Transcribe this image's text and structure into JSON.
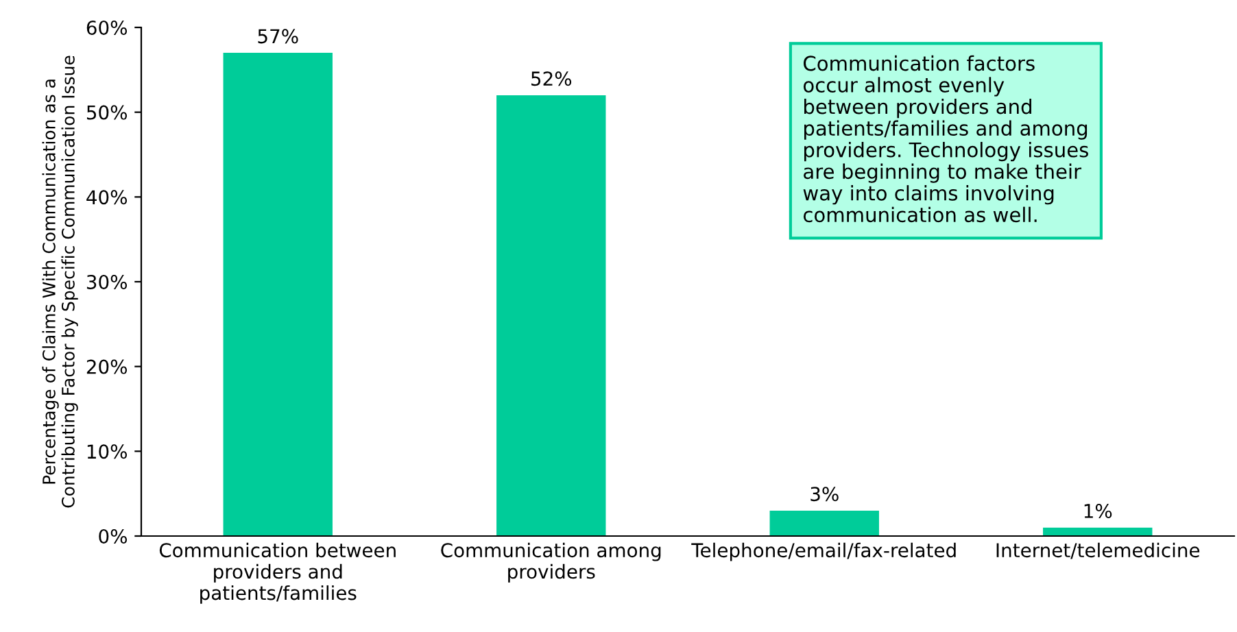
{
  "chart_data": {
    "type": "bar",
    "categories": [
      "Communication between\nproviders and\npatients/families",
      "Communication among\nproviders",
      "Telephone/email/fax-related",
      "Internet/telemedicine"
    ],
    "values": [
      57,
      52,
      3,
      1
    ],
    "color": "#00cc99",
    "ylabel": "Percentage of Claims With Communication as a\nContributing Factor by Specific Communication Issue",
    "ylim": [
      0,
      60
    ],
    "yticks": [
      {
        "value": 0,
        "label": "0%"
      },
      {
        "value": 10,
        "label": "10%"
      },
      {
        "value": 20,
        "label": "20%"
      },
      {
        "value": 30,
        "label": "30%"
      },
      {
        "value": 40,
        "label": "40%"
      },
      {
        "value": 50,
        "label": "50%"
      },
      {
        "value": 60,
        "label": "60%"
      }
    ],
    "value_labels": [
      "57%",
      "52%",
      "3%",
      "1%"
    ],
    "annotations": [
      "Communication factors\noccur almost evenly\nbetween providers and\npatients/families and among\nproviders. Technology issues\nare beginning to make their\nway into claims involving\ncommunication as well."
    ],
    "grid": false,
    "legend": false
  }
}
